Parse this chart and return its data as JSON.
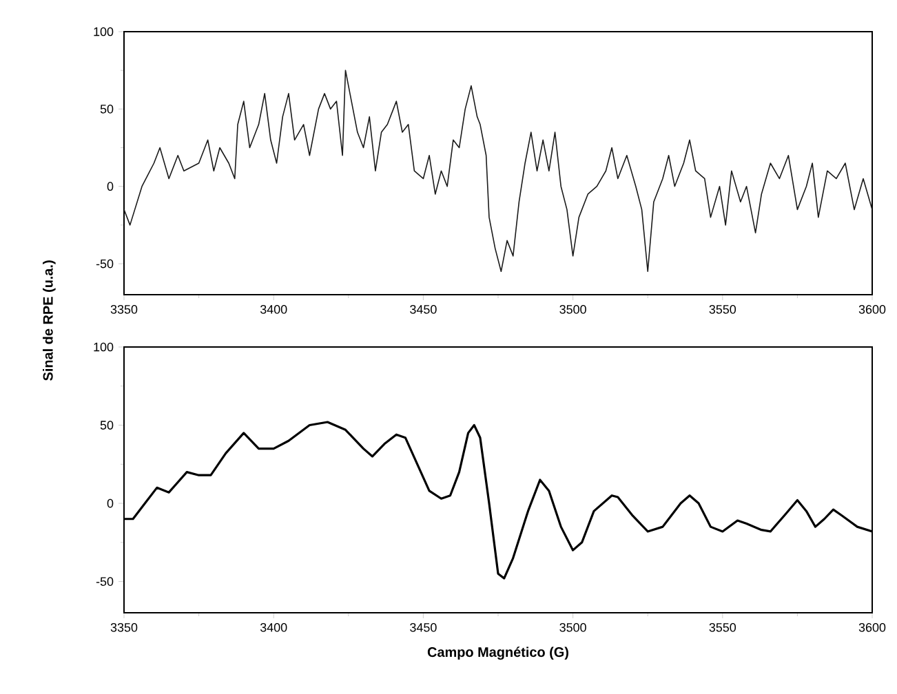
{
  "chart_data": [
    {
      "type": "line",
      "xlim": [
        3350,
        3600
      ],
      "ylim": [
        -70,
        100
      ],
      "xticks": [
        3350,
        3400,
        3450,
        3500,
        3550,
        3600
      ],
      "yticks": [
        -50,
        0,
        50,
        100
      ],
      "x": [
        3350,
        3352,
        3356,
        3360,
        3362,
        3365,
        3368,
        3370,
        3375,
        3378,
        3380,
        3382,
        3385,
        3387,
        3388,
        3390,
        3392,
        3395,
        3397,
        3399,
        3401,
        3403,
        3405,
        3407,
        3410,
        3412,
        3415,
        3417,
        3419,
        3421,
        3423,
        3424,
        3426,
        3428,
        3430,
        3432,
        3434,
        3436,
        3438,
        3441,
        3443,
        3445,
        3447,
        3450,
        3452,
        3454,
        3456,
        3458,
        3460,
        3462,
        3464,
        3466,
        3468,
        3469,
        3471,
        3472,
        3474,
        3476,
        3478,
        3480,
        3482,
        3484,
        3486,
        3488,
        3490,
        3492,
        3494,
        3496,
        3498,
        3500,
        3502,
        3505,
        3508,
        3511,
        3513,
        3515,
        3518,
        3521,
        3523,
        3525,
        3527,
        3530,
        3532,
        3534,
        3537,
        3539,
        3541,
        3544,
        3546,
        3549,
        3551,
        3553,
        3556,
        3558,
        3561,
        3563,
        3566,
        3569,
        3572,
        3575,
        3578,
        3580,
        3582,
        3585,
        3588,
        3591,
        3594,
        3597,
        3600
      ],
      "series": [
        {
          "color": "#1a1a1a",
          "values": [
            -15,
            -25,
            0,
            15,
            25,
            5,
            20,
            10,
            15,
            30,
            10,
            25,
            15,
            5,
            40,
            55,
            25,
            40,
            60,
            30,
            15,
            45,
            60,
            30,
            40,
            20,
            50,
            60,
            50,
            55,
            20,
            75,
            55,
            35,
            25,
            45,
            10,
            35,
            40,
            55,
            35,
            40,
            10,
            5,
            20,
            -5,
            10,
            0,
            30,
            25,
            50,
            65,
            45,
            40,
            20,
            -20,
            -40,
            -55,
            -35,
            -45,
            -10,
            15,
            35,
            10,
            30,
            10,
            35,
            0,
            -15,
            -45,
            -20,
            -5,
            0,
            10,
            25,
            5,
            20,
            0,
            -15,
            -55,
            -10,
            5,
            20,
            0,
            15,
            30,
            10,
            5,
            -20,
            0,
            -25,
            10,
            -10,
            0,
            -30,
            -5,
            15,
            5,
            20,
            -15,
            0,
            15,
            -20,
            10,
            5,
            15,
            -15,
            5,
            -15
          ]
        }
      ]
    },
    {
      "type": "line",
      "xlim": [
        3350,
        3600
      ],
      "ylim": [
        -70,
        100
      ],
      "xticks": [
        3350,
        3400,
        3450,
        3500,
        3550,
        3600
      ],
      "yticks": [
        -50,
        0,
        50,
        100
      ],
      "xlabel": "Campo Magnético (G)",
      "ylabel": "Sinal de RPE (u.a.)",
      "x": [
        3350,
        3353,
        3357,
        3361,
        3365,
        3371,
        3375,
        3379,
        3384,
        3390,
        3395,
        3400,
        3405,
        3412,
        3418,
        3424,
        3430,
        3433,
        3437,
        3441,
        3444,
        3448,
        3452,
        3456,
        3459,
        3462,
        3465,
        3467,
        3469,
        3472,
        3475,
        3477,
        3480,
        3485,
        3489,
        3492,
        3496,
        3500,
        3503,
        3507,
        3513,
        3515,
        3520,
        3525,
        3530,
        3536,
        3539,
        3542,
        3546,
        3550,
        3555,
        3558,
        3563,
        3566,
        3571,
        3575,
        3578,
        3581,
        3584,
        3587,
        3590,
        3595,
        3600
      ],
      "series": [
        {
          "color": "#000000",
          "values": [
            -10,
            -10,
            0,
            10,
            7,
            20,
            18,
            18,
            32,
            45,
            35,
            35,
            40,
            50,
            52,
            47,
            35,
            30,
            38,
            44,
            42,
            25,
            8,
            3,
            5,
            20,
            45,
            50,
            42,
            0,
            -45,
            -48,
            -35,
            -5,
            15,
            8,
            -15,
            -30,
            -25,
            -5,
            5,
            4,
            -8,
            -18,
            -15,
            0,
            5,
            0,
            -15,
            -18,
            -11,
            -13,
            -17,
            -18,
            -7,
            2,
            -5,
            -15,
            -10,
            -4,
            -8,
            -15,
            -18
          ]
        }
      ]
    }
  ]
}
